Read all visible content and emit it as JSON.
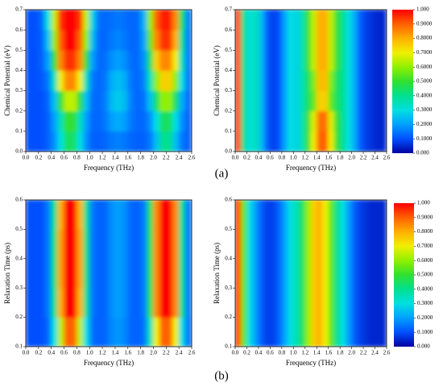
{
  "panel_labels": [
    "(a)",
    "(b)"
  ],
  "chart_data": [
    {
      "type": "heatmap",
      "xlabel": "Frequency (THz)",
      "ylabel": "Chemical Potential (eV)",
      "xlim": [
        0,
        2.6
      ],
      "ylim": [
        0,
        0.7
      ],
      "zlim": [
        0,
        1
      ],
      "colorscale": [
        "#0000a0",
        "#0050ff",
        "#00a0ff",
        "#00e0e0",
        "#00e090",
        "#30e030",
        "#90f000",
        "#f0f000",
        "#ffb000",
        "#ff6000",
        "#ff0000"
      ],
      "xticks": [
        {
          "value": 0,
          "label": "0.0"
        },
        0.2,
        0.4,
        0.6,
        0.8,
        {
          "value": 1,
          "label": "1.0"
        },
        1.2,
        1.4,
        1.6,
        1.8,
        {
          "value": 2,
          "label": "2.0"
        },
        2.2,
        2.4,
        2.6
      ],
      "yticks": [
        {
          "value": 0,
          "label": "0.0"
        },
        0.1,
        0.2,
        0.3,
        0.4,
        0.5,
        0.6,
        0.7
      ],
      "x": [
        0.05,
        0.15,
        0.25,
        0.35,
        0.45,
        0.55,
        0.65,
        0.75,
        0.85,
        0.95,
        1.05,
        1.15,
        1.25,
        1.35,
        1.45,
        1.55,
        1.65,
        1.75,
        1.85,
        1.95,
        2.05,
        2.15,
        2.25,
        2.35,
        2.45,
        2.55
      ],
      "y": [
        0.05,
        0.15,
        0.25,
        0.35,
        0.45,
        0.55,
        0.65
      ],
      "z": [
        [
          0.1,
          0.1,
          0.1,
          0.12,
          0.18,
          0.3,
          0.45,
          0.45,
          0.3,
          0.18,
          0.12,
          0.12,
          0.13,
          0.15,
          0.16,
          0.15,
          0.13,
          0.12,
          0.12,
          0.15,
          0.25,
          0.4,
          0.4,
          0.25,
          0.15,
          0.12
        ],
        [
          0.1,
          0.1,
          0.1,
          0.12,
          0.2,
          0.35,
          0.5,
          0.5,
          0.35,
          0.2,
          0.13,
          0.13,
          0.15,
          0.2,
          0.22,
          0.2,
          0.15,
          0.13,
          0.13,
          0.18,
          0.3,
          0.45,
          0.45,
          0.3,
          0.18,
          0.12
        ],
        [
          0.1,
          0.1,
          0.1,
          0.13,
          0.25,
          0.5,
          0.65,
          0.65,
          0.5,
          0.25,
          0.14,
          0.13,
          0.16,
          0.24,
          0.27,
          0.24,
          0.16,
          0.13,
          0.14,
          0.25,
          0.45,
          0.6,
          0.6,
          0.45,
          0.22,
          0.13
        ],
        [
          0.1,
          0.1,
          0.11,
          0.15,
          0.35,
          0.7,
          0.85,
          0.85,
          0.7,
          0.35,
          0.15,
          0.13,
          0.15,
          0.22,
          0.25,
          0.22,
          0.15,
          0.13,
          0.16,
          0.35,
          0.6,
          0.75,
          0.75,
          0.6,
          0.3,
          0.14
        ],
        [
          0.1,
          0.1,
          0.12,
          0.2,
          0.5,
          0.85,
          0.95,
          0.95,
          0.85,
          0.5,
          0.2,
          0.13,
          0.14,
          0.18,
          0.2,
          0.18,
          0.14,
          0.13,
          0.18,
          0.45,
          0.75,
          0.85,
          0.85,
          0.7,
          0.35,
          0.15
        ],
        [
          0.1,
          0.1,
          0.12,
          0.25,
          0.6,
          0.9,
          1.0,
          1.0,
          0.9,
          0.6,
          0.25,
          0.13,
          0.13,
          0.15,
          0.17,
          0.15,
          0.13,
          0.13,
          0.2,
          0.55,
          0.85,
          0.95,
          0.95,
          0.8,
          0.4,
          0.15
        ],
        [
          0.1,
          0.1,
          0.13,
          0.3,
          0.65,
          0.95,
          1.0,
          1.0,
          0.95,
          0.65,
          0.28,
          0.14,
          0.13,
          0.14,
          0.15,
          0.14,
          0.13,
          0.13,
          0.22,
          0.6,
          0.9,
          0.97,
          0.97,
          0.85,
          0.45,
          0.16
        ]
      ]
    },
    {
      "type": "heatmap",
      "xlabel": "Frequency (THz)",
      "ylabel": "Chemical Potential (eV)",
      "xlim": [
        0,
        2.6
      ],
      "ylim": [
        0,
        0.7
      ],
      "zlim": [
        0,
        1
      ],
      "colorscale": [
        "#0000a0",
        "#0050ff",
        "#00a0ff",
        "#00e0e0",
        "#00e090",
        "#30e030",
        "#90f000",
        "#f0f000",
        "#ffb000",
        "#ff6000",
        "#ff0000"
      ],
      "zticks": [
        {
          "value": 0,
          "label": "0.000"
        },
        {
          "value": 0.1,
          "label": "0.1000"
        },
        {
          "value": 0.2,
          "label": "0.2000"
        },
        {
          "value": 0.3,
          "label": "0.3000"
        },
        {
          "value": 0.4,
          "label": "0.4000"
        },
        {
          "value": 0.5,
          "label": "0.5000"
        },
        {
          "value": 0.6,
          "label": "0.6000"
        },
        {
          "value": 0.7,
          "label": "0.7000"
        },
        {
          "value": 0.8,
          "label": "0.8000"
        },
        {
          "value": 0.9,
          "label": "0.9000"
        },
        {
          "value": 1,
          "label": "1.000"
        }
      ],
      "xticks": [
        {
          "value": 0,
          "label": "0.0"
        },
        0.2,
        0.4,
        0.6,
        0.8,
        {
          "value": 1,
          "label": "1.0"
        },
        1.2,
        1.4,
        1.6,
        1.8,
        {
          "value": 2,
          "label": "2.0"
        },
        2.2,
        2.4,
        2.6
      ],
      "yticks": [
        {
          "value": 0,
          "label": "0.0"
        },
        0.1,
        0.2,
        0.3,
        0.4,
        0.5,
        0.6,
        0.7
      ],
      "x": [
        0.05,
        0.15,
        0.25,
        0.35,
        0.45,
        0.55,
        0.65,
        0.75,
        0.85,
        0.95,
        1.05,
        1.15,
        1.25,
        1.35,
        1.45,
        1.55,
        1.65,
        1.75,
        1.85,
        1.95,
        2.05,
        2.15,
        2.25,
        2.35,
        2.45,
        2.55
      ],
      "y": [
        0.05,
        0.15,
        0.25,
        0.35,
        0.45,
        0.55,
        0.65
      ],
      "z": [
        [
          0.95,
          0.4,
          0.3,
          0.35,
          0.25,
          0.12,
          0.08,
          0.1,
          0.2,
          0.3,
          0.28,
          0.35,
          0.5,
          0.7,
          0.9,
          0.9,
          0.7,
          0.5,
          0.4,
          0.3,
          0.22,
          0.12,
          0.08,
          0.06,
          0.05,
          0.05
        ],
        [
          0.95,
          0.4,
          0.3,
          0.35,
          0.25,
          0.12,
          0.08,
          0.1,
          0.2,
          0.3,
          0.28,
          0.35,
          0.5,
          0.68,
          0.88,
          0.88,
          0.68,
          0.5,
          0.4,
          0.3,
          0.22,
          0.12,
          0.08,
          0.06,
          0.05,
          0.05
        ],
        [
          0.95,
          0.4,
          0.3,
          0.35,
          0.25,
          0.12,
          0.08,
          0.1,
          0.2,
          0.3,
          0.28,
          0.35,
          0.45,
          0.55,
          0.75,
          0.75,
          0.55,
          0.45,
          0.4,
          0.3,
          0.22,
          0.12,
          0.08,
          0.06,
          0.05,
          0.05
        ],
        [
          0.95,
          0.4,
          0.3,
          0.35,
          0.25,
          0.12,
          0.08,
          0.1,
          0.2,
          0.3,
          0.28,
          0.35,
          0.45,
          0.58,
          0.78,
          0.78,
          0.58,
          0.45,
          0.4,
          0.3,
          0.22,
          0.12,
          0.08,
          0.06,
          0.05,
          0.05
        ],
        [
          0.95,
          0.4,
          0.3,
          0.35,
          0.25,
          0.12,
          0.08,
          0.1,
          0.2,
          0.3,
          0.28,
          0.35,
          0.5,
          0.65,
          0.8,
          0.8,
          0.65,
          0.5,
          0.4,
          0.3,
          0.22,
          0.12,
          0.08,
          0.06,
          0.05,
          0.05
        ],
        [
          0.95,
          0.4,
          0.3,
          0.35,
          0.25,
          0.12,
          0.08,
          0.1,
          0.2,
          0.3,
          0.28,
          0.35,
          0.5,
          0.65,
          0.8,
          0.8,
          0.65,
          0.5,
          0.4,
          0.3,
          0.22,
          0.12,
          0.08,
          0.06,
          0.05,
          0.05
        ],
        [
          0.95,
          0.4,
          0.3,
          0.35,
          0.25,
          0.12,
          0.08,
          0.1,
          0.2,
          0.3,
          0.28,
          0.35,
          0.5,
          0.65,
          0.8,
          0.8,
          0.65,
          0.5,
          0.4,
          0.3,
          0.22,
          0.12,
          0.08,
          0.06,
          0.05,
          0.05
        ]
      ]
    },
    {
      "type": "heatmap",
      "xlabel": "Frequency (THz)",
      "ylabel": "Relaxation Time (ps)",
      "xlim": [
        0,
        2.6
      ],
      "ylim": [
        0.1,
        0.6
      ],
      "zlim": [
        0,
        1
      ],
      "colorscale": [
        "#0000a0",
        "#0050ff",
        "#00a0ff",
        "#00e0e0",
        "#00e090",
        "#30e030",
        "#90f000",
        "#f0f000",
        "#ffb000",
        "#ff6000",
        "#ff0000"
      ],
      "xticks": [
        {
          "value": 0,
          "label": "0.0"
        },
        0.2,
        0.4,
        0.6,
        0.8,
        {
          "value": 1,
          "label": "1.0"
        },
        1.2,
        1.4,
        1.6,
        1.8,
        {
          "value": 2,
          "label": "2.0"
        },
        2.2,
        2.4,
        2.6
      ],
      "yticks": [
        0.1,
        0.2,
        0.3,
        0.4,
        0.5,
        0.6
      ],
      "x": [
        0.05,
        0.15,
        0.25,
        0.35,
        0.45,
        0.55,
        0.65,
        0.75,
        0.85,
        0.95,
        1.05,
        1.15,
        1.25,
        1.35,
        1.45,
        1.55,
        1.65,
        1.75,
        1.85,
        1.95,
        2.05,
        2.15,
        2.25,
        2.35,
        2.45,
        2.55
      ],
      "y": [
        0.15,
        0.25,
        0.35,
        0.45,
        0.55
      ],
      "z": [
        [
          0.1,
          0.1,
          0.1,
          0.13,
          0.3,
          0.65,
          0.9,
          0.9,
          0.65,
          0.3,
          0.14,
          0.12,
          0.13,
          0.17,
          0.19,
          0.17,
          0.13,
          0.12,
          0.14,
          0.35,
          0.7,
          0.9,
          0.9,
          0.7,
          0.3,
          0.14
        ],
        [
          0.1,
          0.1,
          0.1,
          0.15,
          0.4,
          0.8,
          1.0,
          1.0,
          0.8,
          0.4,
          0.15,
          0.12,
          0.13,
          0.18,
          0.2,
          0.18,
          0.13,
          0.12,
          0.15,
          0.45,
          0.85,
          1.0,
          1.0,
          0.85,
          0.4,
          0.15
        ],
        [
          0.1,
          0.1,
          0.1,
          0.15,
          0.42,
          0.82,
          1.0,
          1.0,
          0.82,
          0.42,
          0.15,
          0.12,
          0.13,
          0.18,
          0.2,
          0.18,
          0.13,
          0.12,
          0.15,
          0.45,
          0.85,
          1.0,
          1.0,
          0.85,
          0.4,
          0.15
        ],
        [
          0.1,
          0.1,
          0.1,
          0.15,
          0.42,
          0.82,
          1.0,
          1.0,
          0.82,
          0.42,
          0.15,
          0.12,
          0.13,
          0.18,
          0.2,
          0.18,
          0.13,
          0.12,
          0.15,
          0.45,
          0.85,
          1.0,
          1.0,
          0.85,
          0.4,
          0.15
        ],
        [
          0.1,
          0.1,
          0.1,
          0.15,
          0.4,
          0.8,
          1.0,
          1.0,
          0.8,
          0.4,
          0.15,
          0.12,
          0.13,
          0.18,
          0.2,
          0.18,
          0.13,
          0.12,
          0.15,
          0.45,
          0.85,
          1.0,
          1.0,
          0.85,
          0.4,
          0.15
        ]
      ]
    },
    {
      "type": "heatmap",
      "xlabel": "Frequency (THz)",
      "ylabel": "Relaxation Time (ps)",
      "xlim": [
        0,
        2.6
      ],
      "ylim": [
        0.1,
        0.6
      ],
      "zlim": [
        0,
        1
      ],
      "colorscale": [
        "#0000a0",
        "#0050ff",
        "#00a0ff",
        "#00e0e0",
        "#00e090",
        "#30e030",
        "#90f000",
        "#f0f000",
        "#ffb000",
        "#ff6000",
        "#ff0000"
      ],
      "zticks": [
        {
          "value": 0,
          "label": "0.000"
        },
        {
          "value": 0.1,
          "label": "0.1000"
        },
        {
          "value": 0.2,
          "label": "0.2000"
        },
        {
          "value": 0.3,
          "label": "0.3000"
        },
        {
          "value": 0.4,
          "label": "0.4000"
        },
        {
          "value": 0.5,
          "label": "0.5000"
        },
        {
          "value": 0.6,
          "label": "0.6000"
        },
        {
          "value": 0.7,
          "label": "0.7000"
        },
        {
          "value": 0.8,
          "label": "0.8000"
        },
        {
          "value": 0.9,
          "label": "0.9000"
        },
        {
          "value": 1,
          "label": "1.000"
        }
      ],
      "xticks": [
        {
          "value": 0,
          "label": "0.0"
        },
        0.2,
        0.4,
        0.6,
        0.8,
        {
          "value": 1,
          "label": "1.0"
        },
        1.2,
        1.4,
        1.6,
        1.8,
        {
          "value": 2,
          "label": "2.0"
        },
        2.2,
        2.4,
        2.6
      ],
      "yticks": [
        0.1,
        0.2,
        0.3,
        0.4,
        0.5,
        0.6
      ],
      "x": [
        0.05,
        0.15,
        0.25,
        0.35,
        0.45,
        0.55,
        0.65,
        0.75,
        0.85,
        0.95,
        1.05,
        1.15,
        1.25,
        1.35,
        1.45,
        1.55,
        1.65,
        1.75,
        1.85,
        1.95,
        2.05,
        2.15,
        2.25,
        2.35,
        2.45,
        2.55
      ],
      "y": [
        0.15,
        0.25,
        0.35,
        0.45,
        0.55
      ],
      "z": [
        [
          0.95,
          0.55,
          0.3,
          0.2,
          0.12,
          0.08,
          0.08,
          0.12,
          0.2,
          0.3,
          0.35,
          0.45,
          0.6,
          0.75,
          0.8,
          0.7,
          0.55,
          0.4,
          0.3,
          0.2,
          0.12,
          0.08,
          0.06,
          0.05,
          0.05,
          0.05
        ],
        [
          0.95,
          0.55,
          0.3,
          0.2,
          0.12,
          0.08,
          0.08,
          0.12,
          0.2,
          0.3,
          0.35,
          0.45,
          0.6,
          0.75,
          0.8,
          0.7,
          0.55,
          0.4,
          0.3,
          0.2,
          0.12,
          0.08,
          0.06,
          0.05,
          0.05,
          0.05
        ],
        [
          0.95,
          0.55,
          0.3,
          0.2,
          0.12,
          0.08,
          0.08,
          0.12,
          0.2,
          0.3,
          0.35,
          0.45,
          0.6,
          0.75,
          0.8,
          0.7,
          0.55,
          0.4,
          0.3,
          0.2,
          0.12,
          0.08,
          0.06,
          0.05,
          0.05,
          0.05
        ],
        [
          0.95,
          0.55,
          0.3,
          0.2,
          0.12,
          0.08,
          0.08,
          0.12,
          0.2,
          0.3,
          0.35,
          0.45,
          0.6,
          0.75,
          0.8,
          0.7,
          0.55,
          0.4,
          0.3,
          0.2,
          0.12,
          0.08,
          0.06,
          0.05,
          0.05,
          0.05
        ],
        [
          0.95,
          0.55,
          0.3,
          0.2,
          0.12,
          0.08,
          0.08,
          0.12,
          0.2,
          0.3,
          0.35,
          0.45,
          0.6,
          0.75,
          0.8,
          0.7,
          0.55,
          0.4,
          0.3,
          0.2,
          0.12,
          0.08,
          0.06,
          0.05,
          0.05,
          0.05
        ]
      ]
    }
  ]
}
